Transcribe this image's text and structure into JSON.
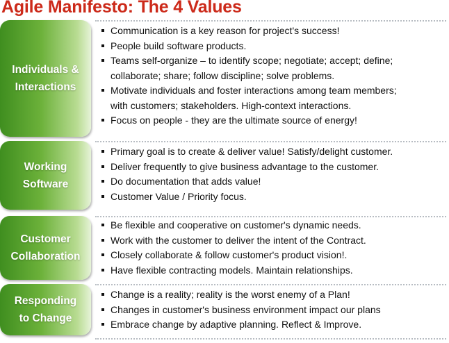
{
  "title": "Agile Manifesto: The 4 Values",
  "values": [
    {
      "label": "Individuals &\nInteractions",
      "points": [
        {
          "text": "Communication is a key reason for project's success!"
        },
        {
          "text": "People build software products."
        },
        {
          "text": "Teams self-organize – to identify scope; negotiate; accept; define;",
          "cont": "collaborate; share; follow discipline; solve problems."
        },
        {
          "text": "Motivate individuals and foster interactions among team members;",
          "cont": "with customers; stakeholders. High-context interactions."
        },
        {
          "text": "Focus on people - they are the ultimate source of energy!"
        }
      ]
    },
    {
      "label": "Working\nSoftware",
      "points": [
        {
          "text": "Primary goal is to create & deliver value! Satisfy/delight customer."
        },
        {
          "text": "Deliver frequently to give business advantage to the customer."
        },
        {
          "text": "Do documentation that adds value!"
        },
        {
          "text": "Customer Value / Priority focus."
        }
      ]
    },
    {
      "label": "Customer\nCollaboration",
      "points": [
        {
          "text": "Be flexible and cooperative on customer's dynamic needs."
        },
        {
          "text": "Work with the customer to deliver the intent of the Contract."
        },
        {
          "text": "Closely collaborate & follow customer's product vision!."
        },
        {
          "text": "Have flexible contracting models. Maintain relationships."
        }
      ]
    },
    {
      "label": "Responding\nto Change",
      "points": [
        {
          "text": "Change is a reality; reality is the worst enemy of a Plan!"
        },
        {
          "text": "Changes in customer's business environment impact our plans"
        },
        {
          "text": "Embrace change by adaptive planning. Reflect & Improve."
        }
      ]
    }
  ]
}
